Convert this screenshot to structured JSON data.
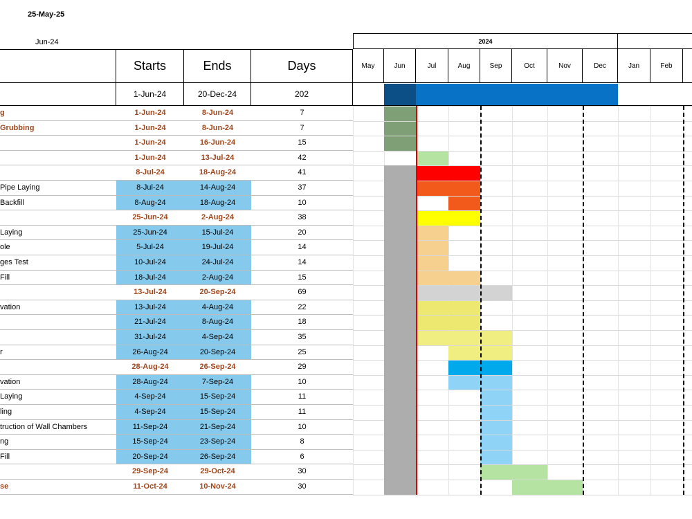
{
  "report_date": "25-May-25",
  "period_label": "Jun-24",
  "columns": {
    "starts": "Starts",
    "ends": "Ends",
    "days": "Days"
  },
  "summary": {
    "start": "1-Jun-24",
    "end": "20-Dec-24",
    "days": "202"
  },
  "gantt": {
    "year_label": "2024",
    "months": [
      "May",
      "Jun",
      "Jul",
      "Aug",
      "Sep",
      "Oct",
      "Nov",
      "Dec",
      "Jan",
      "Feb"
    ]
  },
  "tasks": [
    {
      "name": "g",
      "start": "1-Jun-24",
      "end": "8-Jun-24",
      "days": "7",
      "type": "summary",
      "bar": {
        "from": 1,
        "to": 2,
        "color": "#7f9f76"
      }
    },
    {
      "name": "Grubbing",
      "start": "1-Jun-24",
      "end": "8-Jun-24",
      "days": "7",
      "type": "summary",
      "bar": {
        "from": 1,
        "to": 2,
        "color": "#7f9f76"
      }
    },
    {
      "name": "",
      "start": "1-Jun-24",
      "end": "16-Jun-24",
      "days": "15",
      "type": "summary",
      "bar": {
        "from": 1,
        "to": 2,
        "color": "#7f9f76"
      }
    },
    {
      "name": "",
      "start": "1-Jun-24",
      "end": "13-Jul-24",
      "days": "42",
      "type": "summary",
      "bar": {
        "from": 2,
        "to": 3,
        "color": "#b5e3a2"
      }
    },
    {
      "name": "",
      "start": "8-Jul-24",
      "end": "18-Aug-24",
      "days": "41",
      "type": "summary",
      "bar": {
        "from": 2,
        "to": 4,
        "color": "#ff0000"
      }
    },
    {
      "name": "Pipe Laying",
      "start": "8-Jul-24",
      "end": "14-Aug-24",
      "days": "37",
      "type": "detail",
      "bar": {
        "from": 2,
        "to": 4,
        "color": "#f15a1a"
      }
    },
    {
      "name": "Backfill",
      "start": "8-Aug-24",
      "end": "18-Aug-24",
      "days": "10",
      "type": "detail",
      "bar": {
        "from": 3,
        "to": 4,
        "color": "#f15a1a"
      }
    },
    {
      "name": "",
      "start": "25-Jun-24",
      "end": "2-Aug-24",
      "days": "38",
      "type": "summary",
      "bar": {
        "from": 2,
        "to": 4,
        "color": "#ffff00"
      }
    },
    {
      "name": " Laying",
      "start": "25-Jun-24",
      "end": "15-Jul-24",
      "days": "20",
      "type": "detail",
      "bar": {
        "from": 2,
        "to": 3,
        "color": "#f6d08e"
      }
    },
    {
      "name": "ole",
      "start": "5-Jul-24",
      "end": "19-Jul-24",
      "days": "14",
      "type": "detail",
      "bar": {
        "from": 2,
        "to": 3,
        "color": "#f6d08e"
      }
    },
    {
      "name": "ges Test",
      "start": "10-Jul-24",
      "end": "24-Jul-24",
      "days": "14",
      "type": "detail",
      "bar": {
        "from": 2,
        "to": 3,
        "color": "#f6d08e"
      }
    },
    {
      "name": "Fill",
      "start": "18-Jul-24",
      "end": "2-Aug-24",
      "days": "15",
      "type": "detail",
      "bar": {
        "from": 2,
        "to": 4,
        "color": "#f6d08e"
      }
    },
    {
      "name": "",
      "start": "13-Jul-24",
      "end": "20-Sep-24",
      "days": "69",
      "type": "summary",
      "bar": {
        "from": 2,
        "to": 5,
        "color": "#d3d3d3"
      }
    },
    {
      "name": "vation",
      "start": "13-Jul-24",
      "end": "4-Aug-24",
      "days": "22",
      "type": "detail",
      "bar": {
        "from": 2,
        "to": 4,
        "color": "#ece870"
      }
    },
    {
      "name": "",
      "start": "21-Jul-24",
      "end": "8-Aug-24",
      "days": "18",
      "type": "detail",
      "bar": {
        "from": 2,
        "to": 4,
        "color": "#ece870"
      }
    },
    {
      "name": "",
      "start": "31-Jul-24",
      "end": "4-Sep-24",
      "days": "35",
      "type": "detail",
      "bar": {
        "from": 2,
        "to": 5,
        "color": "#f0ee80"
      }
    },
    {
      "name": "r",
      "start": "26-Aug-24",
      "end": "20-Sep-24",
      "days": "25",
      "type": "detail",
      "bar": {
        "from": 3,
        "to": 5,
        "color": "#f0ee80"
      }
    },
    {
      "name": "",
      "start": "28-Aug-24",
      "end": "26-Sep-24",
      "days": "29",
      "type": "summary",
      "bar": {
        "from": 3,
        "to": 5,
        "color": "#00a8ec"
      }
    },
    {
      "name": "vation",
      "start": "28-Aug-24",
      "end": "7-Sep-24",
      "days": "10",
      "type": "detail",
      "bar": {
        "from": 3,
        "to": 5,
        "color": "#8fd4f6"
      }
    },
    {
      "name": "Laying",
      "start": "4-Sep-24",
      "end": "15-Sep-24",
      "days": "11",
      "type": "detail",
      "bar": {
        "from": 4,
        "to": 5,
        "color": "#8fd4f6"
      }
    },
    {
      "name": "ling",
      "start": "4-Sep-24",
      "end": "15-Sep-24",
      "days": "11",
      "type": "detail",
      "bar": {
        "from": 4,
        "to": 5,
        "color": "#8fd4f6"
      }
    },
    {
      "name": "truction of Wall Chambers",
      "start": "11-Sep-24",
      "end": "21-Sep-24",
      "days": "10",
      "type": "detail",
      "bar": {
        "from": 4,
        "to": 5,
        "color": "#8fd4f6"
      }
    },
    {
      "name": "ng",
      "start": "15-Sep-24",
      "end": "23-Sep-24",
      "days": "8",
      "type": "detail",
      "bar": {
        "from": 4,
        "to": 5,
        "color": "#8fd4f6"
      }
    },
    {
      "name": "Fill",
      "start": "20-Sep-24",
      "end": "26-Sep-24",
      "days": "6",
      "type": "detail",
      "bar": {
        "from": 4,
        "to": 5,
        "color": "#8fd4f6"
      }
    },
    {
      "name": "",
      "start": "29-Sep-24",
      "end": "29-Oct-24",
      "days": "30",
      "type": "summary",
      "bar": {
        "from": 4,
        "to": 6,
        "color": "#b5e3a2"
      }
    },
    {
      "name": "se",
      "start": "11-Oct-24",
      "end": "10-Nov-24",
      "days": "30",
      "type": "summary",
      "bar": {
        "from": 5,
        "to": 7,
        "color": "#b5e3a2"
      }
    }
  ]
}
